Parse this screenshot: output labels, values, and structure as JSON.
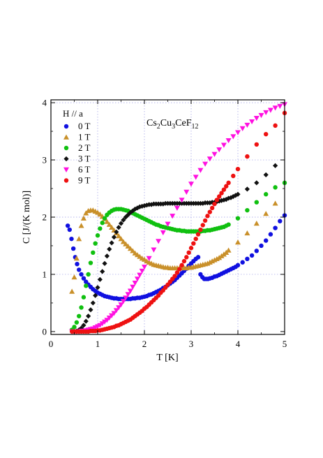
{
  "chart_data": {
    "type": "scatter",
    "title": "",
    "xlabel": "T [K]",
    "ylabel": "C [J/(K mol)]",
    "xlim": [
      0,
      5
    ],
    "ylim": [
      -0.05,
      4.05
    ],
    "xticks": [
      "0",
      "1",
      "2",
      "3",
      "4",
      "5"
    ],
    "yticks": [
      "0",
      "1",
      "2",
      "3",
      "4"
    ],
    "grid": true,
    "legend": {
      "title": "H // a",
      "placement": "top-left"
    },
    "annotation": {
      "base": "Cs",
      "sub1": "2",
      "mid1": "Cu",
      "sub2": "3",
      "mid2": "CeF",
      "sub3": "12"
    },
    "series": [
      {
        "name": "0 T",
        "color": "#1010e0",
        "marker": "circle",
        "x": [
          0.36,
          0.4,
          0.44,
          0.48,
          0.52,
          0.56,
          0.6,
          0.65,
          0.7,
          0.75,
          0.8,
          0.85,
          0.9,
          0.95,
          1.0,
          1.05,
          1.1,
          1.15,
          1.2,
          1.25,
          1.3,
          1.35,
          1.4,
          1.45,
          1.5,
          1.55,
          1.6,
          1.65,
          1.7,
          1.75,
          1.8,
          1.85,
          1.9,
          1.95,
          2.0,
          2.05,
          2.1,
          2.15,
          2.2,
          2.25,
          2.3,
          2.35,
          2.4,
          2.45,
          2.5,
          2.55,
          2.6,
          2.65,
          2.7,
          2.75,
          2.8,
          2.85,
          2.9,
          2.95,
          3.0,
          3.05,
          3.1,
          3.15,
          3.2,
          3.24,
          3.28,
          3.32,
          3.36,
          3.4,
          3.45,
          3.5,
          3.55,
          3.6,
          3.65,
          3.7,
          3.75,
          3.8,
          3.85,
          3.9,
          3.95,
          4.0,
          4.1,
          4.2,
          4.3,
          4.4,
          4.5,
          4.6,
          4.7,
          4.8,
          4.9,
          5.0
        ],
        "y": [
          1.85,
          1.78,
          1.62,
          1.45,
          1.3,
          1.18,
          1.08,
          1.0,
          0.93,
          0.87,
          0.82,
          0.78,
          0.74,
          0.71,
          0.68,
          0.66,
          0.64,
          0.62,
          0.61,
          0.6,
          0.59,
          0.58,
          0.58,
          0.57,
          0.57,
          0.57,
          0.57,
          0.57,
          0.57,
          0.58,
          0.58,
          0.59,
          0.59,
          0.6,
          0.61,
          0.62,
          0.64,
          0.65,
          0.67,
          0.69,
          0.71,
          0.73,
          0.76,
          0.78,
          0.81,
          0.84,
          0.87,
          0.9,
          0.94,
          0.98,
          1.02,
          1.06,
          1.1,
          1.15,
          1.19,
          1.23,
          1.27,
          1.3,
          1.0,
          0.95,
          0.92,
          0.92,
          0.92,
          0.93,
          0.94,
          0.96,
          0.97,
          0.99,
          1.01,
          1.03,
          1.05,
          1.07,
          1.09,
          1.11,
          1.13,
          1.16,
          1.21,
          1.27,
          1.33,
          1.41,
          1.5,
          1.59,
          1.7,
          1.81,
          1.93,
          2.03
        ]
      },
      {
        "name": "1 T",
        "color": "#c9902a",
        "marker": "triangle-up",
        "x": [
          0.45,
          0.5,
          0.55,
          0.6,
          0.65,
          0.7,
          0.75,
          0.8,
          0.85,
          0.9,
          0.95,
          1.0,
          1.05,
          1.1,
          1.15,
          1.2,
          1.25,
          1.3,
          1.35,
          1.4,
          1.45,
          1.5,
          1.55,
          1.6,
          1.65,
          1.7,
          1.75,
          1.8,
          1.85,
          1.9,
          1.95,
          2.0,
          2.05,
          2.1,
          2.15,
          2.2,
          2.25,
          2.3,
          2.35,
          2.4,
          2.45,
          2.5,
          2.55,
          2.6,
          2.65,
          2.7,
          2.75,
          2.8,
          2.85,
          2.9,
          2.95,
          3.0,
          3.05,
          3.1,
          3.15,
          3.2,
          3.25,
          3.3,
          3.35,
          3.4,
          3.45,
          3.5,
          3.55,
          3.6,
          3.65,
          3.7,
          3.75,
          3.8,
          4.0,
          4.2,
          4.4,
          4.6,
          4.8
        ],
        "y": [
          0.7,
          0.95,
          1.28,
          1.62,
          1.85,
          1.98,
          2.07,
          2.11,
          2.12,
          2.12,
          2.1,
          2.08,
          2.05,
          2.01,
          1.97,
          1.92,
          1.87,
          1.82,
          1.77,
          1.72,
          1.67,
          1.62,
          1.57,
          1.53,
          1.49,
          1.45,
          1.41,
          1.37,
          1.34,
          1.31,
          1.28,
          1.26,
          1.23,
          1.21,
          1.19,
          1.17,
          1.16,
          1.15,
          1.14,
          1.13,
          1.12,
          1.12,
          1.11,
          1.11,
          1.11,
          1.11,
          1.11,
          1.11,
          1.11,
          1.11,
          1.12,
          1.12,
          1.13,
          1.14,
          1.15,
          1.16,
          1.17,
          1.18,
          1.19,
          1.21,
          1.23,
          1.25,
          1.27,
          1.29,
          1.32,
          1.35,
          1.38,
          1.42,
          1.56,
          1.72,
          1.89,
          2.06,
          2.24
        ]
      },
      {
        "name": "2 T",
        "color": "#10c010",
        "marker": "circle",
        "x": [
          0.45,
          0.5,
          0.55,
          0.6,
          0.65,
          0.7,
          0.75,
          0.8,
          0.85,
          0.9,
          0.95,
          1.0,
          1.05,
          1.1,
          1.15,
          1.2,
          1.25,
          1.3,
          1.35,
          1.4,
          1.45,
          1.5,
          1.55,
          1.6,
          1.65,
          1.7,
          1.75,
          1.8,
          1.85,
          1.9,
          1.95,
          2.0,
          2.05,
          2.1,
          2.15,
          2.2,
          2.25,
          2.3,
          2.35,
          2.4,
          2.45,
          2.5,
          2.55,
          2.6,
          2.65,
          2.7,
          2.75,
          2.8,
          2.85,
          2.9,
          2.95,
          3.0,
          3.05,
          3.1,
          3.15,
          3.2,
          3.25,
          3.3,
          3.35,
          3.4,
          3.45,
          3.5,
          3.55,
          3.6,
          3.65,
          3.7,
          3.75,
          3.8,
          4.0,
          4.2,
          4.4,
          4.6,
          4.8,
          5.0
        ],
        "y": [
          0.03,
          0.08,
          0.16,
          0.27,
          0.42,
          0.6,
          0.8,
          1.0,
          1.2,
          1.38,
          1.54,
          1.68,
          1.8,
          1.9,
          1.98,
          2.04,
          2.08,
          2.11,
          2.13,
          2.14,
          2.14,
          2.14,
          2.13,
          2.12,
          2.11,
          2.09,
          2.07,
          2.05,
          2.03,
          2.01,
          1.99,
          1.97,
          1.95,
          1.93,
          1.91,
          1.89,
          1.87,
          1.86,
          1.84,
          1.83,
          1.82,
          1.81,
          1.8,
          1.79,
          1.78,
          1.77,
          1.77,
          1.76,
          1.76,
          1.75,
          1.75,
          1.75,
          1.75,
          1.75,
          1.75,
          1.75,
          1.76,
          1.76,
          1.77,
          1.77,
          1.78,
          1.79,
          1.8,
          1.81,
          1.82,
          1.83,
          1.85,
          1.87,
          1.98,
          2.12,
          2.26,
          2.4,
          2.52,
          2.6
        ]
      },
      {
        "name": "3 T",
        "color": "#111111",
        "marker": "diamond",
        "x": [
          0.5,
          0.55,
          0.6,
          0.65,
          0.7,
          0.75,
          0.8,
          0.85,
          0.9,
          0.95,
          1.0,
          1.05,
          1.1,
          1.15,
          1.2,
          1.25,
          1.3,
          1.35,
          1.4,
          1.45,
          1.5,
          1.55,
          1.6,
          1.65,
          1.7,
          1.75,
          1.8,
          1.85,
          1.9,
          1.95,
          2.0,
          2.05,
          2.1,
          2.15,
          2.2,
          2.25,
          2.3,
          2.35,
          2.4,
          2.45,
          2.5,
          2.55,
          2.6,
          2.65,
          2.7,
          2.75,
          2.8,
          2.85,
          2.9,
          2.95,
          3.0,
          3.05,
          3.1,
          3.15,
          3.2,
          3.25,
          3.3,
          3.35,
          3.4,
          3.45,
          3.5,
          3.55,
          3.6,
          3.65,
          3.7,
          3.75,
          3.8,
          3.85,
          3.9,
          3.95,
          4.0,
          4.2,
          4.4,
          4.6,
          4.8
        ],
        "y": [
          0.0,
          0.01,
          0.03,
          0.06,
          0.11,
          0.18,
          0.27,
          0.38,
          0.5,
          0.63,
          0.77,
          0.91,
          1.05,
          1.19,
          1.32,
          1.44,
          1.55,
          1.65,
          1.74,
          1.82,
          1.89,
          1.95,
          2.0,
          2.04,
          2.08,
          2.11,
          2.14,
          2.16,
          2.18,
          2.19,
          2.2,
          2.21,
          2.22,
          2.22,
          2.23,
          2.23,
          2.23,
          2.23,
          2.23,
          2.24,
          2.24,
          2.24,
          2.24,
          2.24,
          2.24,
          2.24,
          2.24,
          2.24,
          2.24,
          2.24,
          2.24,
          2.24,
          2.24,
          2.24,
          2.24,
          2.24,
          2.25,
          2.25,
          2.25,
          2.26,
          2.26,
          2.27,
          2.28,
          2.29,
          2.3,
          2.31,
          2.33,
          2.34,
          2.36,
          2.38,
          2.4,
          2.49,
          2.6,
          2.74,
          2.9
        ]
      },
      {
        "name": "6 T",
        "color": "#ff10e0",
        "marker": "triangle-down",
        "x": [
          0.45,
          0.5,
          0.55,
          0.6,
          0.65,
          0.7,
          0.75,
          0.8,
          0.85,
          0.9,
          0.95,
          1.0,
          1.05,
          1.1,
          1.15,
          1.2,
          1.25,
          1.3,
          1.35,
          1.4,
          1.45,
          1.5,
          1.55,
          1.6,
          1.65,
          1.7,
          1.75,
          1.8,
          1.85,
          1.9,
          1.95,
          2.0,
          2.1,
          2.2,
          2.3,
          2.4,
          2.5,
          2.6,
          2.7,
          2.8,
          2.9,
          3.0,
          3.1,
          3.2,
          3.3,
          3.4,
          3.5,
          3.6,
          3.7,
          3.8,
          3.9,
          4.0,
          4.1,
          4.2,
          4.3,
          4.4,
          4.5,
          4.6,
          4.7,
          4.8,
          4.9,
          5.0
        ],
        "y": [
          0.0,
          0.0,
          0.0,
          0.0,
          0.01,
          0.01,
          0.02,
          0.03,
          0.04,
          0.05,
          0.07,
          0.09,
          0.11,
          0.14,
          0.17,
          0.2,
          0.24,
          0.28,
          0.32,
          0.37,
          0.42,
          0.47,
          0.53,
          0.59,
          0.65,
          0.71,
          0.78,
          0.85,
          0.92,
          0.99,
          1.06,
          1.13,
          1.28,
          1.43,
          1.58,
          1.73,
          1.88,
          2.02,
          2.16,
          2.3,
          2.44,
          2.58,
          2.7,
          2.82,
          2.93,
          3.02,
          3.1,
          3.18,
          3.26,
          3.34,
          3.41,
          3.48,
          3.55,
          3.61,
          3.67,
          3.73,
          3.78,
          3.83,
          3.87,
          3.91,
          3.94,
          3.97
        ]
      },
      {
        "name": "9 T",
        "color": "#ee1111",
        "marker": "circle",
        "x": [
          0.45,
          0.5,
          0.55,
          0.6,
          0.65,
          0.7,
          0.75,
          0.8,
          0.85,
          0.9,
          0.95,
          1.0,
          1.05,
          1.1,
          1.15,
          1.2,
          1.25,
          1.3,
          1.35,
          1.4,
          1.45,
          1.5,
          1.55,
          1.6,
          1.65,
          1.7,
          1.75,
          1.8,
          1.85,
          1.9,
          1.95,
          2.0,
          2.05,
          2.1,
          2.15,
          2.2,
          2.25,
          2.3,
          2.35,
          2.4,
          2.45,
          2.5,
          2.55,
          2.6,
          2.65,
          2.7,
          2.75,
          2.8,
          2.85,
          2.9,
          2.95,
          3.0,
          3.05,
          3.1,
          3.15,
          3.2,
          3.25,
          3.3,
          3.35,
          3.4,
          3.45,
          3.5,
          3.55,
          3.6,
          3.65,
          3.7,
          3.75,
          3.8,
          3.9,
          4.0,
          4.2,
          4.4,
          4.6,
          4.8,
          5.0
        ],
        "y": [
          0.0,
          0.0,
          0.0,
          0.0,
          0.0,
          0.0,
          0.0,
          0.0,
          0.01,
          0.01,
          0.01,
          0.02,
          0.02,
          0.03,
          0.04,
          0.05,
          0.06,
          0.07,
          0.08,
          0.1,
          0.11,
          0.13,
          0.15,
          0.17,
          0.19,
          0.21,
          0.24,
          0.27,
          0.3,
          0.33,
          0.36,
          0.4,
          0.43,
          0.47,
          0.51,
          0.55,
          0.59,
          0.63,
          0.68,
          0.72,
          0.77,
          0.82,
          0.87,
          0.92,
          0.97,
          1.03,
          1.09,
          1.16,
          1.23,
          1.3,
          1.38,
          1.46,
          1.54,
          1.62,
          1.7,
          1.78,
          1.86,
          1.94,
          2.02,
          2.09,
          2.16,
          2.23,
          2.3,
          2.36,
          2.42,
          2.48,
          2.54,
          2.6,
          2.72,
          2.84,
          3.06,
          3.27,
          3.45,
          3.6,
          3.82
        ]
      }
    ]
  }
}
